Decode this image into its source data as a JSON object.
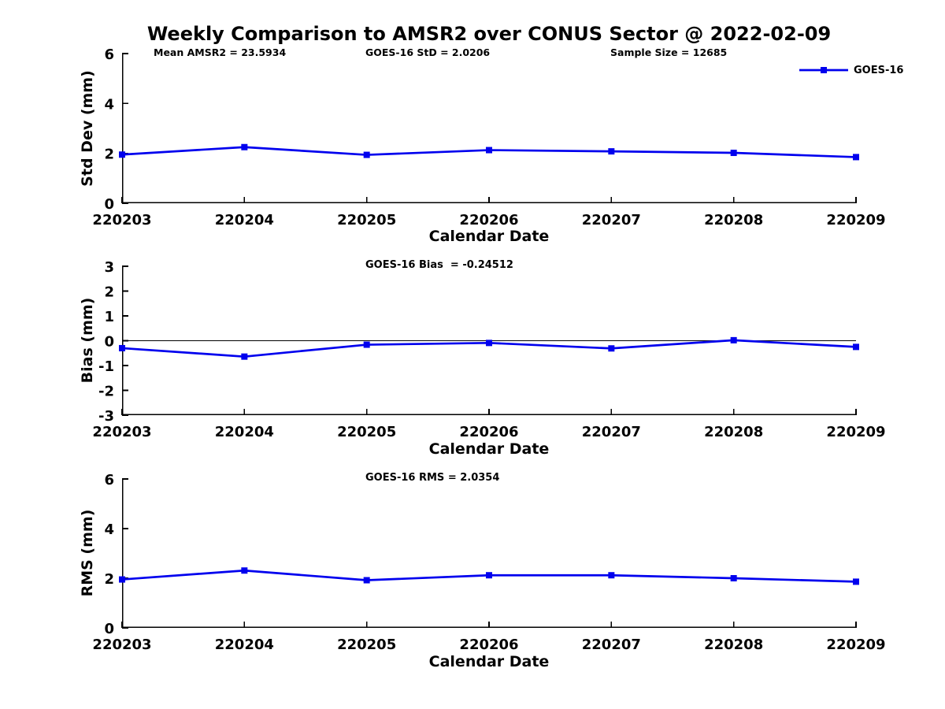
{
  "page": {
    "background": "#ffffff",
    "colors": {
      "series": "#0000ee",
      "axis": "#000000",
      "zero_line": "#000000",
      "text": "#000000"
    }
  },
  "title": "Weekly Comparison to AMSR2 over CONUS Sector @ 2022-02-09",
  "annotations": {
    "mean_amsr2": "Mean AMSR2 = 23.5934",
    "goes16_std": "GOES-16 StD = 2.0206",
    "sample_size": "Sample Size = 12685"
  },
  "legend": {
    "label": "GOES-16",
    "marker": "filled-square",
    "line_color": "#0000ee",
    "position": "top-right-outside-plot-1"
  },
  "chart_data": [
    {
      "type": "line",
      "title": "",
      "x_categories": [
        "220203",
        "220204",
        "220205",
        "220206",
        "220207",
        "220208",
        "220209"
      ],
      "series": [
        {
          "name": "GOES-16",
          "values": [
            1.95,
            2.25,
            1.94,
            2.13,
            2.08,
            2.02,
            1.85
          ]
        }
      ],
      "xlabel": "Calendar Date",
      "ylabel": "Std Dev (mm)",
      "ylim": [
        0,
        6
      ],
      "yticks": [
        0,
        2,
        4,
        6
      ],
      "grid": false,
      "zero_line": false
    },
    {
      "type": "line",
      "title": "GOES-16 Bias  = -0.24512",
      "x_categories": [
        "220203",
        "220204",
        "220205",
        "220206",
        "220207",
        "220208",
        "220209"
      ],
      "series": [
        {
          "name": "GOES-16",
          "values": [
            -0.3,
            -0.64,
            -0.16,
            -0.09,
            -0.31,
            0.02,
            -0.25
          ]
        }
      ],
      "xlabel": "Calendar Date",
      "ylabel": "Bias (mm)",
      "ylim": [
        -3,
        3
      ],
      "yticks": [
        -3,
        -2,
        -1,
        0,
        1,
        2,
        3
      ],
      "grid": false,
      "zero_line": true
    },
    {
      "type": "line",
      "title": "GOES-16 RMS = 2.0354",
      "x_categories": [
        "220203",
        "220204",
        "220205",
        "220206",
        "220207",
        "220208",
        "220209"
      ],
      "series": [
        {
          "name": "GOES-16",
          "values": [
            1.95,
            2.31,
            1.92,
            2.12,
            2.12,
            2.0,
            1.86
          ]
        }
      ],
      "xlabel": "Calendar Date",
      "ylabel": "RMS (mm)",
      "ylim": [
        0,
        6
      ],
      "yticks": [
        0,
        2,
        4,
        6
      ],
      "grid": false,
      "zero_line": false
    }
  ]
}
